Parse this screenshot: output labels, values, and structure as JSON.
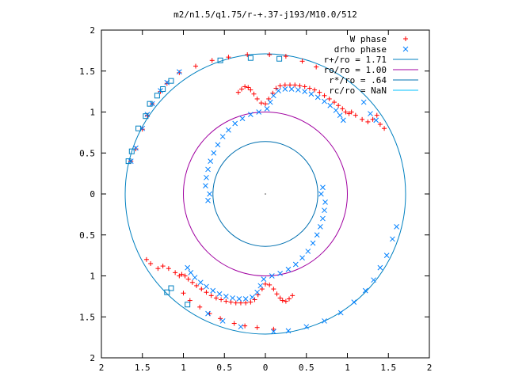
{
  "chart_data": {
    "type": "scatter",
    "title": "m2/n1.5/q1.75/r-+.37-j193/M10.0/512",
    "xlabel": "",
    "ylabel": "",
    "xlim": [
      -2,
      2
    ],
    "ylim": [
      -2,
      2
    ],
    "x_tick_values": [
      -2,
      -1.5,
      -1,
      -0.5,
      0,
      0.5,
      1,
      1.5,
      2
    ],
    "x_tick_labels": [
      "2",
      "1.5",
      "1",
      "0.5",
      "0",
      "0.5",
      "1",
      "1.5",
      "2"
    ],
    "y_tick_values": [
      2,
      1.5,
      1,
      0.5,
      0,
      -0.5,
      -1,
      -1.5,
      -2
    ],
    "y_tick_labels": [
      "2",
      "1.5",
      "1",
      "0.5",
      "0",
      "0.5",
      "1",
      "1.5",
      "2"
    ],
    "grid": false,
    "legend_position": "top-right",
    "colors": {
      "w_phase": "#ff0000",
      "drho_phase": "#0080ff",
      "r_plus": "#0080c0",
      "r_o": "#a000a0",
      "r_star": "#0070b0",
      "r_c": "#00c0ff"
    },
    "series": [
      {
        "name": "W phase",
        "marker": "plus",
        "color": "#ff0000",
        "points": [
          [
            -0.33,
            1.24
          ],
          [
            -0.29,
            1.28
          ],
          [
            -0.25,
            1.31
          ],
          [
            -0.21,
            1.3
          ],
          [
            -0.18,
            1.27
          ],
          [
            -0.14,
            1.22
          ],
          [
            -0.1,
            1.16
          ],
          [
            -0.05,
            1.11
          ],
          [
            0.0,
            1.1
          ],
          [
            0.04,
            1.16
          ],
          [
            0.09,
            1.23
          ],
          [
            0.13,
            1.29
          ],
          [
            0.18,
            1.32
          ],
          [
            0.24,
            1.33
          ],
          [
            0.3,
            1.33
          ],
          [
            0.36,
            1.33
          ],
          [
            0.42,
            1.32
          ],
          [
            0.48,
            1.31
          ],
          [
            0.54,
            1.29
          ],
          [
            0.6,
            1.27
          ],
          [
            0.66,
            1.24
          ],
          [
            0.72,
            1.2
          ],
          [
            0.78,
            1.16
          ],
          [
            0.84,
            1.12
          ],
          [
            0.89,
            1.08
          ],
          [
            0.94,
            1.04
          ],
          [
            0.98,
            1.0
          ],
          [
            1.02,
            0.98
          ],
          [
            0.33,
            -1.24
          ],
          [
            0.29,
            -1.28
          ],
          [
            0.25,
            -1.31
          ],
          [
            0.21,
            -1.3
          ],
          [
            0.18,
            -1.27
          ],
          [
            0.14,
            -1.22
          ],
          [
            0.1,
            -1.16
          ],
          [
            0.05,
            -1.11
          ],
          [
            0.0,
            -1.1
          ],
          [
            -0.04,
            -1.16
          ],
          [
            -0.09,
            -1.23
          ],
          [
            -0.13,
            -1.29
          ],
          [
            -0.18,
            -1.32
          ],
          [
            -0.24,
            -1.33
          ],
          [
            -0.3,
            -1.33
          ],
          [
            -0.36,
            -1.33
          ],
          [
            -0.42,
            -1.32
          ],
          [
            -0.48,
            -1.31
          ],
          [
            -0.54,
            -1.29
          ],
          [
            -0.6,
            -1.27
          ],
          [
            -0.66,
            -1.24
          ],
          [
            -0.72,
            -1.2
          ],
          [
            -0.78,
            -1.16
          ],
          [
            -0.84,
            -1.12
          ],
          [
            -0.89,
            -1.08
          ],
          [
            -0.94,
            -1.04
          ],
          [
            -0.98,
            -1.0
          ],
          [
            -1.02,
            -0.98
          ],
          [
            1.05,
            1.0
          ],
          [
            1.1,
            0.96
          ],
          [
            1.18,
            0.91
          ],
          [
            1.25,
            0.88
          ],
          [
            1.31,
            0.91
          ],
          [
            1.36,
            0.96
          ],
          [
            1.4,
            0.85
          ],
          [
            1.45,
            0.8
          ],
          [
            -1.05,
            -1.0
          ],
          [
            -1.1,
            -0.96
          ],
          [
            -1.18,
            -0.91
          ],
          [
            -1.25,
            -0.88
          ],
          [
            -1.31,
            -0.91
          ],
          [
            -1.4,
            -0.85
          ],
          [
            -1.45,
            -0.8
          ],
          [
            -1.64,
            0.4
          ],
          [
            -1.58,
            0.55
          ],
          [
            -1.5,
            0.79
          ],
          [
            -1.44,
            0.96
          ],
          [
            -1.38,
            1.1
          ],
          [
            -1.28,
            1.25
          ],
          [
            -1.2,
            1.35
          ],
          [
            -1.05,
            1.48
          ],
          [
            -0.85,
            1.56
          ],
          [
            -0.65,
            1.63
          ],
          [
            -0.45,
            1.67
          ],
          [
            -0.22,
            1.7
          ],
          [
            0.05,
            1.7
          ],
          [
            0.25,
            1.68
          ],
          [
            0.45,
            1.62
          ],
          [
            0.62,
            1.55
          ],
          [
            -0.1,
            -1.63
          ],
          [
            -0.25,
            -1.61
          ],
          [
            -0.38,
            -1.58
          ],
          [
            -0.55,
            -1.52
          ],
          [
            -0.68,
            -1.46
          ],
          [
            -0.8,
            -1.38
          ],
          [
            -0.92,
            -1.3
          ],
          [
            -1.0,
            -1.21
          ],
          [
            0.1,
            -1.65
          ]
        ]
      },
      {
        "name": "drho phase",
        "marker": "cross",
        "color": "#0080ff",
        "points": [
          [
            -0.73,
            0.1
          ],
          [
            -0.72,
            0.2
          ],
          [
            -0.7,
            0.3
          ],
          [
            -0.67,
            0.4
          ],
          [
            -0.63,
            0.5
          ],
          [
            -0.58,
            0.6
          ],
          [
            -0.52,
            0.7
          ],
          [
            -0.45,
            0.78
          ],
          [
            -0.37,
            0.86
          ],
          [
            -0.28,
            0.92
          ],
          [
            -0.18,
            0.97
          ],
          [
            -0.08,
            1.0
          ],
          [
            0.02,
            1.04
          ],
          [
            0.06,
            1.12
          ],
          [
            0.1,
            1.2
          ],
          [
            0.16,
            1.26
          ],
          [
            0.24,
            1.28
          ],
          [
            0.32,
            1.28
          ],
          [
            0.4,
            1.27
          ],
          [
            0.48,
            1.25
          ],
          [
            0.56,
            1.22
          ],
          [
            0.64,
            1.18
          ],
          [
            0.72,
            1.13
          ],
          [
            0.79,
            1.08
          ],
          [
            0.86,
            1.02
          ],
          [
            0.91,
            0.96
          ],
          [
            0.95,
            0.9
          ],
          [
            0.73,
            -0.1
          ],
          [
            0.72,
            -0.2
          ],
          [
            0.7,
            -0.3
          ],
          [
            0.67,
            -0.4
          ],
          [
            0.63,
            -0.5
          ],
          [
            0.58,
            -0.6
          ],
          [
            0.52,
            -0.7
          ],
          [
            0.45,
            -0.78
          ],
          [
            0.37,
            -0.86
          ],
          [
            0.28,
            -0.92
          ],
          [
            0.18,
            -0.97
          ],
          [
            0.08,
            -1.0
          ],
          [
            -0.02,
            -1.04
          ],
          [
            -0.06,
            -1.12
          ],
          [
            -0.1,
            -1.2
          ],
          [
            -0.16,
            -1.26
          ],
          [
            -0.24,
            -1.28
          ],
          [
            -0.32,
            -1.28
          ],
          [
            -0.4,
            -1.27
          ],
          [
            -0.48,
            -1.25
          ],
          [
            -0.56,
            -1.22
          ],
          [
            -0.64,
            -1.18
          ],
          [
            -0.72,
            -1.13
          ],
          [
            -0.79,
            -1.08
          ],
          [
            -0.86,
            -1.02
          ],
          [
            -0.91,
            -0.96
          ],
          [
            -0.95,
            -0.9
          ],
          [
            0.7,
            0.08
          ],
          [
            0.68,
            0.0
          ],
          [
            -0.7,
            -0.08
          ],
          [
            -0.68,
            0.0
          ],
          [
            1.6,
            -0.4
          ],
          [
            1.55,
            -0.55
          ],
          [
            1.48,
            -0.75
          ],
          [
            1.4,
            -0.9
          ],
          [
            1.32,
            -1.05
          ],
          [
            1.22,
            -1.18
          ],
          [
            1.08,
            -1.32
          ],
          [
            0.92,
            -1.45
          ],
          [
            0.72,
            -1.55
          ],
          [
            0.5,
            -1.62
          ],
          [
            0.28,
            -1.67
          ],
          [
            0.1,
            -1.68
          ],
          [
            -0.3,
            -1.62
          ],
          [
            -0.52,
            -1.55
          ],
          [
            -0.7,
            -1.46
          ],
          [
            -1.64,
            0.4
          ],
          [
            -1.58,
            0.56
          ],
          [
            -1.5,
            0.8
          ],
          [
            -1.44,
            0.97
          ],
          [
            -1.38,
            1.1
          ],
          [
            -1.28,
            1.26
          ],
          [
            -1.2,
            1.36
          ],
          [
            -1.05,
            1.49
          ],
          [
            1.2,
            1.12
          ],
          [
            1.28,
            0.98
          ],
          [
            1.35,
            0.9
          ]
        ]
      }
    ],
    "circles": [
      {
        "name": "r+/ro = 1.71",
        "radius": 1.71,
        "color": "#0080c0"
      },
      {
        "name": "ro/ro = 1.00",
        "radius": 1.0,
        "color": "#a000a0"
      },
      {
        "name": "r*/ro = .64",
        "radius": 0.64,
        "color": "#0070b0"
      },
      {
        "name": "rc/ro = NaN",
        "radius": null,
        "color": "#00c0ff"
      }
    ],
    "square_points": [
      [
        -1.67,
        0.4
      ],
      [
        -1.63,
        0.52
      ],
      [
        -1.55,
        0.8
      ],
      [
        -1.46,
        0.95
      ],
      [
        -1.41,
        1.1
      ],
      [
        -1.32,
        1.2
      ],
      [
        -1.25,
        1.28
      ],
      [
        -1.15,
        1.38
      ],
      [
        -0.55,
        1.63
      ],
      [
        -0.18,
        1.66
      ],
      [
        0.17,
        1.65
      ],
      [
        -1.2,
        -1.2
      ],
      [
        -1.15,
        -1.15
      ],
      [
        -0.95,
        -1.35
      ]
    ]
  }
}
